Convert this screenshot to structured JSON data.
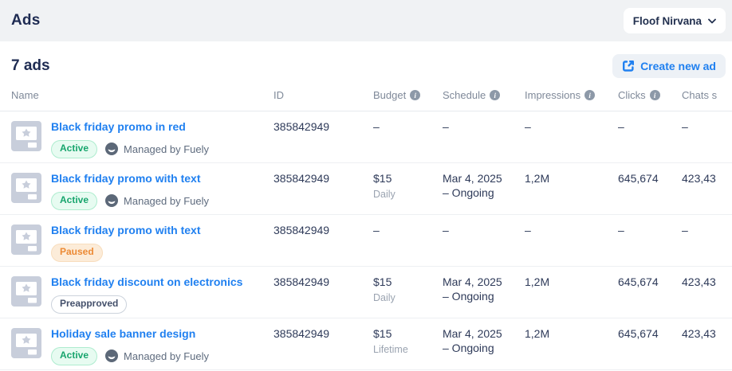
{
  "colors": {
    "accent_blue": "#2080f0",
    "active_green": "#17a56d",
    "paused_orange": "#ec8a35",
    "heading_navy": "#1e2b52"
  },
  "topbar": {
    "title": "Ads",
    "account_selector": {
      "label": "Floof Nirvana"
    }
  },
  "toolbar": {
    "count_label": "7 ads",
    "create_button_label": "Create new ad"
  },
  "table": {
    "columns": [
      {
        "label": "Name",
        "info": false,
        "key": "c-name"
      },
      {
        "label": "ID",
        "info": false,
        "key": "c-id"
      },
      {
        "label": "Budget",
        "info": true,
        "key": "c-budget"
      },
      {
        "label": "Schedule",
        "info": true,
        "key": "c-sched"
      },
      {
        "label": "Impressions",
        "info": true,
        "key": "c-impr"
      },
      {
        "label": "Clicks",
        "info": true,
        "key": "c-clicks"
      },
      {
        "label": "Chats s",
        "info": false,
        "key": "c-chats"
      }
    ],
    "rows": [
      {
        "name": "Black friday promo in red",
        "status": "Active",
        "status_type": "active",
        "managed": "Managed by Fuely",
        "id": "385842949",
        "budget": "–",
        "budget_period": "",
        "schedule_start": "–",
        "schedule_end": "",
        "impressions": "–",
        "clicks": "–",
        "chats": "–"
      },
      {
        "name": "Black friday promo with text",
        "status": "Active",
        "status_type": "active",
        "managed": "Managed by Fuely",
        "id": "385842949",
        "budget": "$15",
        "budget_period": "Daily",
        "schedule_start": "Mar 4, 2025",
        "schedule_end": "– Ongoing",
        "impressions": "1,2M",
        "clicks": "645,674",
        "chats": "423,43"
      },
      {
        "name": "Black friday promo with text",
        "status": "Paused",
        "status_type": "paused",
        "managed": "",
        "id": "385842949",
        "budget": "–",
        "budget_period": "",
        "schedule_start": "–",
        "schedule_end": "",
        "impressions": "–",
        "clicks": "–",
        "chats": "–"
      },
      {
        "name": "Black friday discount on electronics",
        "status": "Preapproved",
        "status_type": "preapproved",
        "managed": "",
        "id": "385842949",
        "budget": "$15",
        "budget_period": "Daily",
        "schedule_start": "Mar 4, 2025",
        "schedule_end": "– Ongoing",
        "impressions": "1,2M",
        "clicks": "645,674",
        "chats": "423,43"
      },
      {
        "name": "Holiday sale banner design",
        "status": "Active",
        "status_type": "active",
        "managed": "Managed by Fuely",
        "id": "385842949",
        "budget": "$15",
        "budget_period": "Lifetime",
        "schedule_start": "Mar 4, 2025",
        "schedule_end": "– Ongoing",
        "impressions": "1,2M",
        "clicks": "645,674",
        "chats": "423,43"
      }
    ]
  }
}
